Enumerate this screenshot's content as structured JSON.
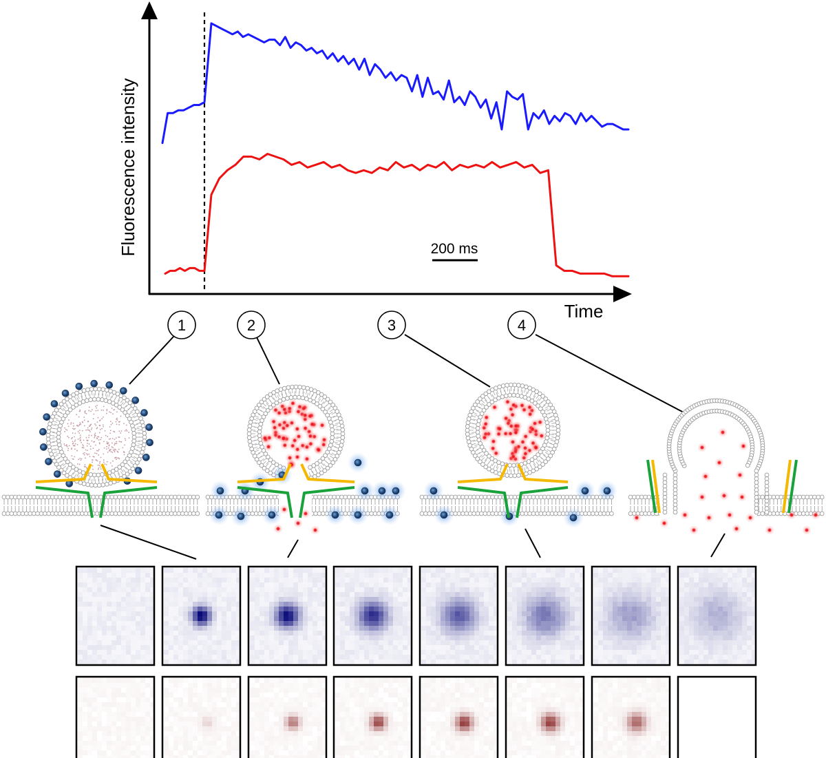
{
  "chart_data": {
    "type": "line",
    "xlabel": "Time",
    "ylabel": "Fluorescence intensity",
    "scale_bar_label": "200 ms",
    "series": [
      {
        "color": "#1a1aff",
        "values": [
          0.55,
          0.66,
          0.66,
          0.67,
          0.67,
          0.68,
          0.69,
          0.69,
          0.7,
          0.99,
          0.98,
          0.97,
          0.96,
          0.95,
          0.96,
          0.94,
          0.95,
          0.94,
          0.93,
          0.92,
          0.93,
          0.93,
          0.91,
          0.94,
          0.9,
          0.92,
          0.91,
          0.89,
          0.9,
          0.88,
          0.89,
          0.86,
          0.88,
          0.85,
          0.87,
          0.84,
          0.86,
          0.82,
          0.86,
          0.8,
          0.84,
          0.82,
          0.79,
          0.81,
          0.78,
          0.8,
          0.79,
          0.74,
          0.8,
          0.72,
          0.79,
          0.73,
          0.74,
          0.71,
          0.78,
          0.7,
          0.72,
          0.69,
          0.74,
          0.72,
          0.68,
          0.71,
          0.64,
          0.7,
          0.6,
          0.74,
          0.72,
          0.71,
          0.73,
          0.6,
          0.66,
          0.64,
          0.67,
          0.62,
          0.65,
          0.63,
          0.66,
          0.65,
          0.62,
          0.66,
          0.63,
          0.65,
          0.63,
          0.61,
          0.62,
          0.62,
          0.61,
          0.6,
          0.6
        ]
      },
      {
        "color": "#ee1111",
        "values": [
          0.07,
          0.08,
          0.08,
          0.09,
          0.08,
          0.09,
          0.09,
          0.08,
          0.08,
          0.36,
          0.42,
          0.45,
          0.47,
          0.5,
          0.5,
          0.49,
          0.51,
          0.5,
          0.49,
          0.47,
          0.48,
          0.46,
          0.47,
          0.48,
          0.46,
          0.47,
          0.45,
          0.44,
          0.45,
          0.44,
          0.46,
          0.45,
          0.48,
          0.46,
          0.47,
          0.45,
          0.47,
          0.46,
          0.48,
          0.45,
          0.47,
          0.46,
          0.47,
          0.46,
          0.48,
          0.46,
          0.47,
          0.48,
          0.46,
          0.47,
          0.44,
          0.45,
          0.1,
          0.08,
          0.08,
          0.07,
          0.07,
          0.07,
          0.07,
          0.06,
          0.06,
          0.06
        ]
      }
    ]
  },
  "diagram": {
    "steps": [
      "1",
      "2",
      "3",
      "4"
    ],
    "colors": {
      "membrane": "#999999",
      "snare_yellow": "#f5b800",
      "snare_green": "#19a13a",
      "cargo_red": "#e8141e",
      "dye_blue": "#1c3f78"
    }
  },
  "image_rows": {
    "blue_intensity": [
      0,
      1.0,
      0.95,
      0.8,
      0.62,
      0.45,
      0.3,
      0.22
    ],
    "red_intensity": [
      0,
      0.15,
      0.55,
      0.75,
      0.8,
      0.78,
      0.6,
      0
    ]
  }
}
